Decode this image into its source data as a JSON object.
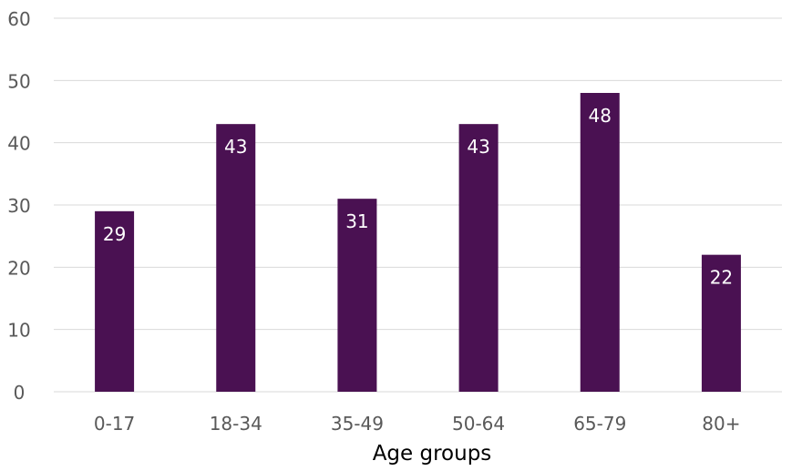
{
  "chart_data": {
    "type": "bar",
    "title": "",
    "xlabel": "Age groups",
    "ylabel": "",
    "categories": [
      "0-17",
      "18-34",
      "35-49",
      "50-64",
      "65-79",
      "80+"
    ],
    "values": [
      29,
      43,
      31,
      43,
      48,
      22
    ],
    "ylim": [
      0,
      60
    ],
    "yticks": [
      0,
      10,
      20,
      30,
      40,
      50,
      60
    ],
    "grid": true,
    "legend": "none",
    "data_labels": "inside-top",
    "colors": {
      "bar": "#4a1152",
      "data_label": "#ffffff",
      "gridline": "#d9d9d9",
      "axis_text": "#595959",
      "axis_title": "#000000"
    }
  }
}
